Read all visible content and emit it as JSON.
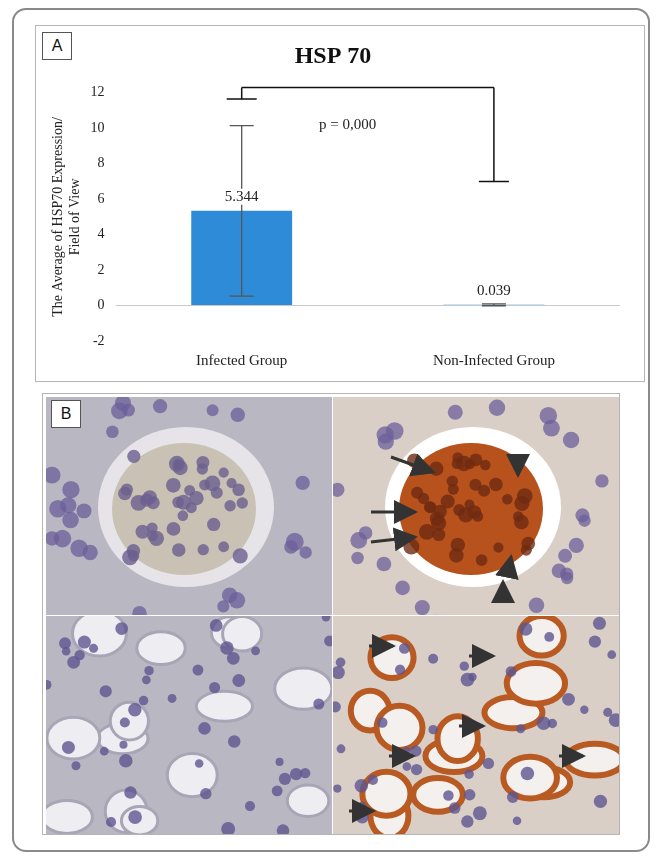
{
  "chart_data": {
    "type": "bar",
    "panel_label": "A",
    "title": "HSP 70",
    "y_label": "The Average of HSP70 Expression/ Field of View",
    "categories": [
      "Infected Group",
      "Non-Infected Group"
    ],
    "values": [
      5.344,
      0.039
    ],
    "errors": [
      4.81,
      0.05
    ],
    "color": "#2e8bd8",
    "data_labels": true,
    "ylim": [
      -2,
      12
    ],
    "yticks": [
      -2,
      0,
      2,
      4,
      6,
      8,
      10,
      12
    ],
    "grid": false,
    "bracket": {
      "y": 12.3,
      "ends": [
        11.65,
        7.0
      ],
      "label": "p = 0,000"
    }
  },
  "image_panel": {
    "label": "B"
  }
}
